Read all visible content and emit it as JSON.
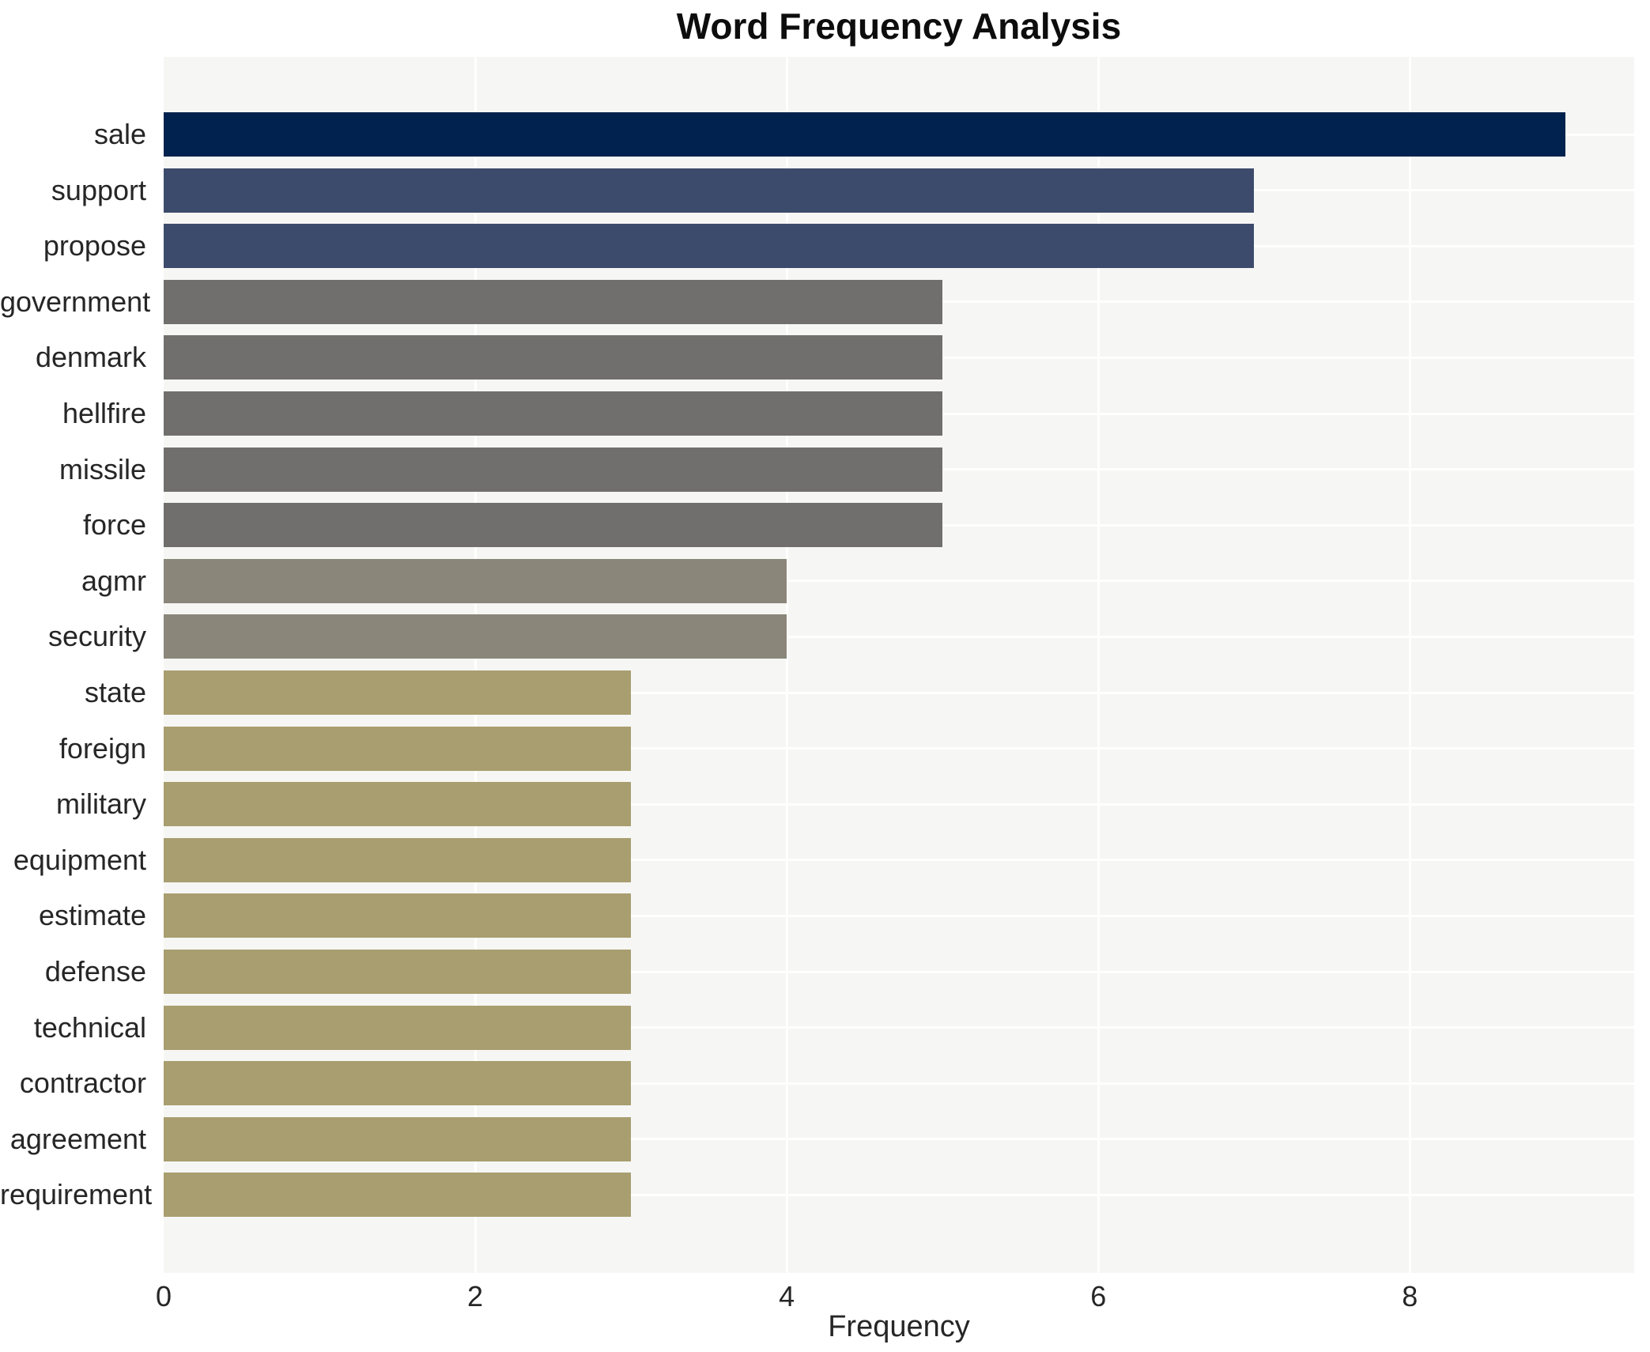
{
  "chart_data": {
    "type": "bar",
    "orientation": "horizontal",
    "title": "Word Frequency Analysis",
    "xlabel": "Frequency",
    "ylabel": "",
    "categories": [
      "sale",
      "support",
      "propose",
      "government",
      "denmark",
      "hellfire",
      "missile",
      "force",
      "agmr",
      "security",
      "state",
      "foreign",
      "military",
      "equipment",
      "estimate",
      "defense",
      "technical",
      "contractor",
      "agreement",
      "requirement"
    ],
    "values": [
      9,
      7,
      7,
      5,
      5,
      5,
      5,
      5,
      4,
      4,
      3,
      3,
      3,
      3,
      3,
      3,
      3,
      3,
      3,
      3
    ],
    "bar_colors": [
      "#01224e",
      "#3c4b6c",
      "#3c4b6c",
      "#706f6d",
      "#706f6d",
      "#706f6d",
      "#706f6d",
      "#706f6d",
      "#8a877a",
      "#8a877a",
      "#a89e6f",
      "#a89e6f",
      "#a89e6f",
      "#a89e6f",
      "#a89e6f",
      "#a89e6f",
      "#a89e6f",
      "#a89e6f",
      "#a89e6f",
      "#a89e6f"
    ],
    "value_color_map": {
      "9": "#01224e",
      "7": "#3c4b6c",
      "5": "#706f6d",
      "4": "#8a877a",
      "3": "#a89e6f"
    },
    "xticks": [
      0,
      2,
      4,
      6,
      8
    ],
    "xtick_labels": [
      "0",
      "2",
      "4",
      "6",
      "8"
    ],
    "xlim": [
      0,
      9.44
    ],
    "grid": true,
    "legend": false,
    "plot_background": "#f6f6f4",
    "gridline_color": "#ffffff",
    "title_color": "#0d0d0d",
    "tick_label_color": "#262626"
  }
}
